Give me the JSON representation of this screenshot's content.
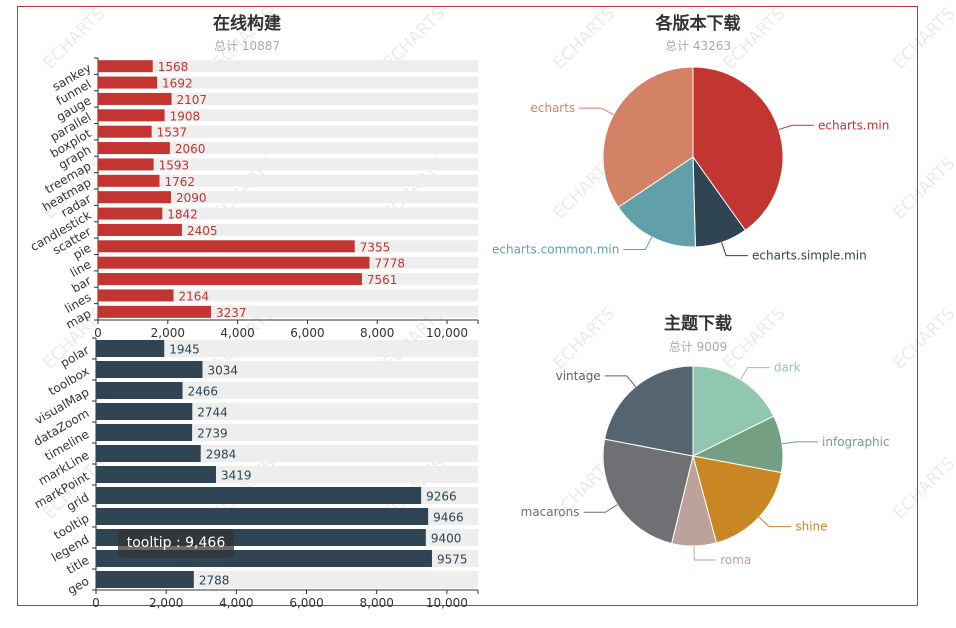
{
  "chart_data": [
    {
      "type": "bar",
      "orientation": "horizontal",
      "title": "在线构建",
      "subtitle": "总计 10887",
      "color": "#c23531",
      "xlim": [
        0,
        10887
      ],
      "xticks": [
        "0",
        "2,000",
        "4,000",
        "6,000",
        "8,000",
        "10,000"
      ],
      "categories": [
        "sankey",
        "funnel",
        "gauge",
        "parallel",
        "boxplot",
        "graph",
        "treemap",
        "heatmap",
        "radar",
        "candlestick",
        "scatter",
        "pie",
        "line",
        "bar",
        "lines",
        "map"
      ],
      "values": [
        1568,
        1692,
        2107,
        1908,
        1537,
        2060,
        1593,
        1762,
        2090,
        1842,
        2405,
        7355,
        7778,
        7561,
        2164,
        3237
      ]
    },
    {
      "type": "bar",
      "orientation": "horizontal",
      "color": "#2f4554",
      "xlim": [
        0,
        10887
      ],
      "xticks": [
        "0",
        "2,000",
        "4,000",
        "6,000",
        "8,000",
        "10,000"
      ],
      "categories": [
        "polar",
        "toolbox",
        "visualMap",
        "dataZoom",
        "timeline",
        "markLine",
        "markPoint",
        "grid",
        "tooltip",
        "legend",
        "title",
        "geo"
      ],
      "values": [
        1945,
        3034,
        2466,
        2744,
        2739,
        2984,
        3419,
        9266,
        9466,
        9400,
        9575,
        2788
      ]
    },
    {
      "type": "pie",
      "title": "各版本下载",
      "subtitle": "总计 43263",
      "slices": [
        {
          "name": "echarts.min",
          "value": 17365,
          "color": "#c23531"
        },
        {
          "name": "echarts.simple.min",
          "value": 4079,
          "color": "#2f4554"
        },
        {
          "name": "echarts.common.min",
          "value": 6929,
          "color": "#61a0a8"
        },
        {
          "name": "echarts",
          "value": 14890,
          "color": "#d48265"
        }
      ]
    },
    {
      "type": "pie",
      "title": "主题下载",
      "subtitle": "总计 9009",
      "slices": [
        {
          "name": "dark",
          "value": 1594,
          "color": "#91c7ae"
        },
        {
          "name": "infographic",
          "value": 925,
          "color": "#749f83"
        },
        {
          "name": "shine",
          "value": 1608,
          "color": "#ca8622"
        },
        {
          "name": "roma",
          "value": 721,
          "color": "#bda29a"
        },
        {
          "name": "macarons",
          "value": 2179,
          "color": "#6e7074"
        },
        {
          "name": "vintage",
          "value": 1982,
          "color": "#546570"
        }
      ]
    }
  ],
  "tooltip": {
    "text": "tooltip : 9,466"
  },
  "watermark": {
    "text": "ECHARTS"
  }
}
